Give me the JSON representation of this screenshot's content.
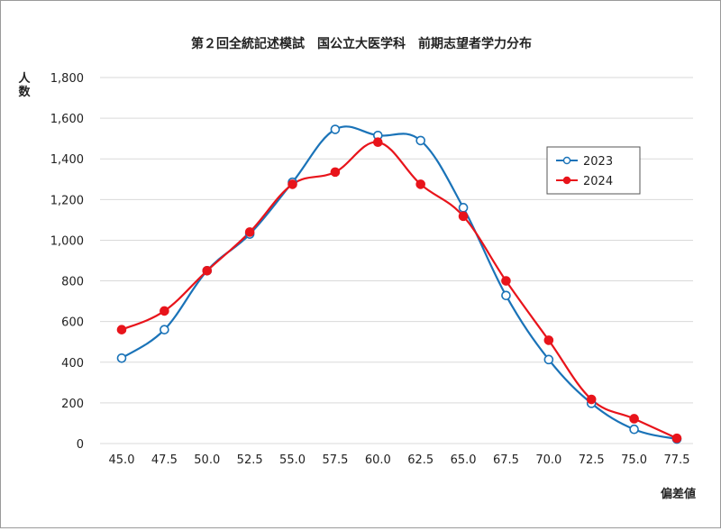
{
  "chart_data": {
    "type": "line",
    "title": "第２回全統記述模試　国公立大医学科　前期志望者学力分布",
    "ylabel": "人数",
    "xlabel": "偏差値",
    "categories": [
      "45.0",
      "47.5",
      "50.0",
      "52.5",
      "55.0",
      "57.5",
      "60.0",
      "62.5",
      "65.0",
      "67.5",
      "70.0",
      "72.5",
      "75.0",
      "77.5"
    ],
    "y_ticks": [
      "0",
      "200",
      "400",
      "600",
      "800",
      "1,000",
      "1,200",
      "1,400",
      "1,600",
      "1,800"
    ],
    "ylim": [
      0,
      1800
    ],
    "grid": true,
    "legend_position": "right",
    "series": [
      {
        "name": "2023",
        "color": "#1a73b8",
        "marker": "open-circle",
        "values": [
          420,
          560,
          850,
          1030,
          1285,
          1545,
          1515,
          1490,
          1160,
          728,
          413,
          198,
          70,
          22
        ]
      },
      {
        "name": "2024",
        "color": "#e8141b",
        "marker": "filled-circle",
        "values": [
          560,
          652,
          850,
          1040,
          1275,
          1335,
          1482,
          1275,
          1118,
          800,
          508,
          217,
          122,
          26
        ]
      }
    ]
  }
}
